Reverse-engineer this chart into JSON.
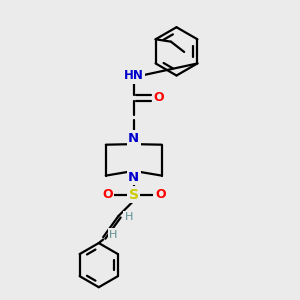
{
  "bg_color": "#ebebeb",
  "line_color": "#000000",
  "N_color": "#0000cc",
  "O_color": "#ff0000",
  "S_color": "#cccc00",
  "H_color": "#5a9090",
  "linewidth": 1.6,
  "figsize": [
    3.0,
    3.0
  ],
  "dpi": 100,
  "xlim": [
    0,
    10
  ],
  "ylim": [
    0,
    10
  ]
}
